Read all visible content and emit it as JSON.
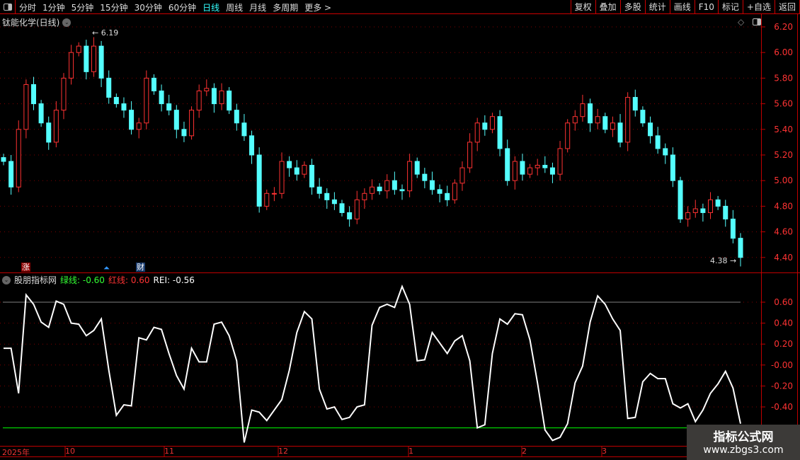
{
  "toolbar": {
    "periods": [
      "分时",
      "1分钟",
      "5分钟",
      "15分钟",
      "30分钟",
      "60分钟",
      "日线",
      "周线",
      "月线",
      "多周期",
      "更多 >"
    ],
    "active": "日线",
    "buttons": [
      "复权",
      "叠加",
      "多股",
      "统计",
      "画线",
      "F10",
      "标记",
      "+自选",
      "返回"
    ]
  },
  "stock": {
    "title": "钛能化学(日线)",
    "high_label": "6.19",
    "low_label": "4.38"
  },
  "colors": {
    "up": "#ff3232",
    "down": "#54ffff",
    "axis": "#c00000",
    "axis_text": "#ff3333",
    "indicator": "#ffffff",
    "green_line": "#00ff00",
    "gray_line": "#808080"
  },
  "price_axis": {
    "ticks": [
      "6.20",
      "6.00",
      "5.80",
      "5.60",
      "5.40",
      "5.20",
      "5.00",
      "4.80",
      "4.60",
      "4.40"
    ],
    "range": [
      4.4,
      6.2
    ]
  },
  "markers": {
    "zhang": "涨",
    "cai": "财"
  },
  "indicator": {
    "name": "股朋指标网",
    "green_label": "绿线:",
    "green_value": "-0.60",
    "red_label": "红线:",
    "red_value": "0.60",
    "rei_label": "REI:",
    "rei_value": "-0.56",
    "ticks": [
      "0.60",
      "0.40",
      "0.20",
      "-0.00",
      "-0.20",
      "-0.40"
    ],
    "green_level": -0.6,
    "red_level": 0.6,
    "values": [
      0.16,
      0.16,
      -0.27,
      0.67,
      0.58,
      0.41,
      0.36,
      0.61,
      0.58,
      0.4,
      0.39,
      0.28,
      0.33,
      0.44,
      -0.05,
      -0.48,
      -0.38,
      -0.39,
      0.26,
      0.24,
      0.36,
      0.34,
      0.11,
      -0.1,
      -0.23,
      0.16,
      0.03,
      0.03,
      0.39,
      0.41,
      0.28,
      0.04,
      -0.74,
      -0.43,
      -0.45,
      -0.53,
      -0.43,
      -0.33,
      -0.05,
      0.31,
      0.51,
      0.44,
      -0.23,
      -0.42,
      -0.4,
      -0.52,
      -0.5,
      -0.4,
      -0.38,
      0.38,
      0.55,
      0.58,
      0.55,
      0.75,
      0.58,
      0.04,
      0.05,
      0.31,
      0.21,
      0.11,
      0.23,
      0.28,
      0.04,
      -0.6,
      -0.57,
      0.11,
      0.44,
      0.39,
      0.49,
      0.48,
      0.24,
      -0.17,
      -0.62,
      -0.72,
      -0.69,
      -0.56,
      -0.17,
      -0.01,
      0.41,
      0.66,
      0.58,
      0.44,
      0.33,
      -0.51,
      -0.5,
      -0.16,
      -0.08,
      -0.13,
      -0.13,
      -0.37,
      -0.41,
      -0.37,
      -0.54,
      -0.43,
      -0.27,
      -0.18,
      -0.06,
      -0.22,
      -0.56
    ]
  },
  "closes": [
    5.15,
    4.95,
    5.4,
    5.75,
    5.6,
    5.45,
    5.3,
    5.55,
    5.8,
    6.0,
    6.05,
    5.85,
    6.05,
    5.8,
    5.65,
    5.6,
    5.55,
    5.4,
    5.45,
    5.8,
    5.7,
    5.6,
    5.55,
    5.4,
    5.35,
    5.55,
    5.7,
    5.72,
    5.6,
    5.7,
    5.55,
    5.45,
    5.35,
    5.2,
    4.8,
    4.9,
    4.9,
    5.15,
    5.1,
    5.05,
    5.12,
    4.95,
    4.9,
    4.85,
    4.82,
    4.75,
    4.7,
    4.85,
    4.9,
    4.95,
    4.92,
    5.0,
    4.93,
    4.92,
    5.15,
    5.05,
    5.0,
    4.93,
    4.9,
    4.85,
    4.98,
    5.1,
    5.3,
    5.45,
    5.4,
    5.5,
    5.25,
    5.0,
    5.15,
    5.05,
    5.1,
    5.12,
    5.1,
    5.05,
    5.25,
    5.45,
    5.5,
    5.6,
    5.45,
    5.5,
    5.4,
    5.45,
    5.3,
    5.65,
    5.55,
    5.45,
    5.35,
    5.25,
    5.2,
    5.0,
    4.7,
    4.75,
    4.78,
    4.75,
    4.85,
    4.8,
    4.7,
    4.55,
    4.4
  ],
  "time_axis": [
    "2025年",
    "10",
    "11",
    "12",
    "1",
    "2",
    "3"
  ],
  "watermark": {
    "line1": "指标公式网",
    "line2": "www.zbgs3.com"
  }
}
